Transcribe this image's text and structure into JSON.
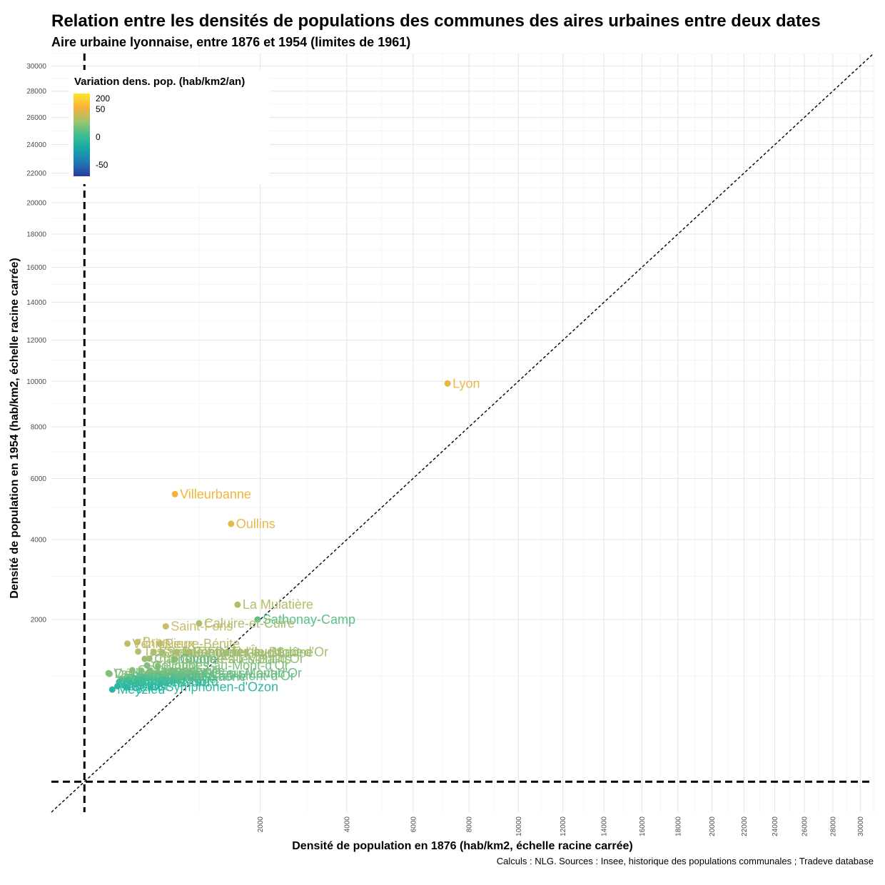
{
  "title": "Relation entre les densités de populations des communes des aires urbaines entre deux dates",
  "subtitle": "Aire urbaine lyonnaise, entre 1876 et 1954 (limites de 1961)",
  "caption": "Calculs : NLG. Sources : Insee, historique des populations communales ; Tradeve database",
  "legend": {
    "title": "Variation dens. pop. (hab/km2/an)",
    "ticks": [
      {
        "label": "200",
        "value": 200
      },
      {
        "label": "50",
        "value": 50
      },
      {
        "label": "0",
        "value": 0
      },
      {
        "label": "-50",
        "value": -50
      }
    ],
    "colors": [
      "#fde725",
      "#fbb13c",
      "#9fc56a",
      "#3fbf8f",
      "#16a6a8",
      "#1f78b4",
      "#2b3ba0"
    ]
  },
  "chart_data": {
    "type": "scatter",
    "title": "Relation entre les densités de populations des communes des aires urbaines entre deux dates",
    "subtitle": "Aire urbaine lyonnaise, entre 1876 et 1954 (limites de 1961)",
    "xlabel": "Densité de population en 1876 (hab/km2, échelle racine carrée)",
    "ylabel": "Densité de population en 1954 (hab/km2, échelle racine carrée)",
    "scale": "sqrt",
    "xlim": [
      0,
      31000
    ],
    "ylim": [
      0,
      31000
    ],
    "x_ticks": [
      2000,
      4000,
      6000,
      8000,
      10000,
      12000,
      14000,
      16000,
      18000,
      20000,
      22000,
      24000,
      26000,
      28000,
      30000
    ],
    "y_ticks": [
      2000,
      4000,
      6000,
      8000,
      10000,
      12000,
      14000,
      16000,
      18000,
      20000,
      22000,
      24000,
      26000,
      28000,
      30000
    ],
    "reference_lines": {
      "diagonal": "y = x",
      "vertical_x": 50,
      "horizontal_y": 50
    },
    "points": [
      {
        "label": "Lyon",
        "x": 7200,
        "y": 9900,
        "color": "#e8b94a"
      },
      {
        "label": "Villeurbanne",
        "x": 700,
        "y": 5450,
        "color": "#f3b43a"
      },
      {
        "label": "Oullins",
        "x": 1480,
        "y": 4480,
        "color": "#e8b94a"
      },
      {
        "label": "La Mulatière",
        "x": 1590,
        "y": 2320,
        "color": "#b5bd66"
      },
      {
        "label": "Sathonay-Camp",
        "x": 1950,
        "y": 2000,
        "color": "#5cbf88"
      },
      {
        "label": "Caluire-et-Cuire",
        "x": 1000,
        "y": 1920,
        "color": "#a9be6f"
      },
      {
        "label": "Saint-Fons",
        "x": 600,
        "y": 1860,
        "color": "#c8bd6a"
      },
      {
        "label": "Bron",
        "x": 340,
        "y": 1560,
        "color": "#c6bd69"
      },
      {
        "label": "Pierre-Bénite",
        "x": 540,
        "y": 1530,
        "color": "#b8bd6c"
      },
      {
        "label": "Vénissieux",
        "x": 265,
        "y": 1530,
        "color": "#c0bc67"
      },
      {
        "label": "Tassin-la-Demi-Lune",
        "x": 345,
        "y": 1390,
        "color": "#b6bd6c"
      },
      {
        "label": "Saint-Rambert-l'Île-Barbe",
        "x": 480,
        "y": 1385,
        "color": "#adbd6e"
      },
      {
        "label": "Sainte-Foy-lès-Lyon",
        "x": 560,
        "y": 1380,
        "color": "#a8bd6f"
      },
      {
        "label": "Saint-Didier-au-Mont-d'Or",
        "x": 720,
        "y": 1380,
        "color": "#a3be70"
      },
      {
        "label": "Fontaines-sur-Saône",
        "x": 860,
        "y": 1375,
        "color": "#9dbe72"
      },
      {
        "label": "Champagne-au-Mont-d'Or",
        "x": 440,
        "y": 1270,
        "color": "#96be74"
      },
      {
        "label": "Charbonnières-les-Bains",
        "x": 400,
        "y": 1265,
        "color": "#9abe72"
      },
      {
        "label": "Givors",
        "x": 700,
        "y": 1260,
        "color": "#55bd8e"
      },
      {
        "label": "Collonges-au-Mont-d'Or",
        "x": 420,
        "y": 1160,
        "color": "#7dbe7e"
      },
      {
        "label": "Écully",
        "x": 520,
        "y": 1150,
        "color": "#86be7a"
      },
      {
        "label": "Chaponost",
        "x": 300,
        "y": 1085,
        "color": "#8abe78"
      },
      {
        "label": "Craponne",
        "x": 370,
        "y": 1080,
        "color": "#80be7c"
      },
      {
        "label": "Francheville",
        "x": 450,
        "y": 1075,
        "color": "#78be80"
      },
      {
        "label": "Vaulx-en-Velin",
        "x": 150,
        "y": 1040,
        "color": "#8cbe77"
      },
      {
        "label": "Décines-Charpieu",
        "x": 155,
        "y": 1030,
        "color": "#82be7b"
      },
      {
        "label": "Limonest",
        "x": 520,
        "y": 1050,
        "color": "#76be81"
      },
      {
        "label": "Saint-Cyr-au-Mont-d'Or",
        "x": 580,
        "y": 1045,
        "color": "#72be83"
      },
      {
        "label": "Saint-Genis-Laval",
        "x": 680,
        "y": 1040,
        "color": "#6ebe85"
      },
      {
        "label": "Irigny",
        "x": 360,
        "y": 1010,
        "color": "#74be82"
      },
      {
        "label": "Vernaison",
        "x": 440,
        "y": 1005,
        "color": "#70be84"
      },
      {
        "label": "Couzon-au-Mont-d'Or",
        "x": 600,
        "y": 1000,
        "color": "#6abd87"
      },
      {
        "label": "Neuville-sur-Saône",
        "x": 300,
        "y": 990,
        "color": "#66bd89"
      },
      {
        "label": "Grigny",
        "x": 400,
        "y": 985,
        "color": "#62bd8b"
      },
      {
        "label": "Saint-Priest",
        "x": 260,
        "y": 980,
        "color": "#5ebd8c"
      },
      {
        "label": "Rillieux-la-Pape",
        "x": 225,
        "y": 960,
        "color": "#5bbd8e"
      },
      {
        "label": "Brignais",
        "x": 330,
        "y": 950,
        "color": "#57bd8f"
      },
      {
        "label": "Genay",
        "x": 380,
        "y": 945,
        "color": "#53bd91"
      },
      {
        "label": "Corbas",
        "x": 250,
        "y": 940,
        "color": "#4fbd93"
      },
      {
        "label": "Feyzin",
        "x": 340,
        "y": 935,
        "color": "#4bbc95"
      },
      {
        "label": "Mions",
        "x": 275,
        "y": 925,
        "color": "#47bc97"
      },
      {
        "label": "Solaize",
        "x": 280,
        "y": 920,
        "color": "#43bc98"
      },
      {
        "label": "Saint-Fons-Nord",
        "x": 210,
        "y": 915,
        "color": "#3fbc9a"
      },
      {
        "label": "Caluire-Nord",
        "x": 300,
        "y": 910,
        "color": "#3bbc9c"
      },
      {
        "label": "Miribel",
        "x": 240,
        "y": 865,
        "color": "#35bb9e"
      },
      {
        "label": "Saint-Symphorien-d'Ozon",
        "x": 260,
        "y": 845,
        "color": "#2db8a2"
      },
      {
        "label": "Beynost",
        "x": 200,
        "y": 855,
        "color": "#2fb9a1"
      },
      {
        "label": "Meyzieu",
        "x": 170,
        "y": 810,
        "color": "#28b6a5"
      }
    ]
  }
}
